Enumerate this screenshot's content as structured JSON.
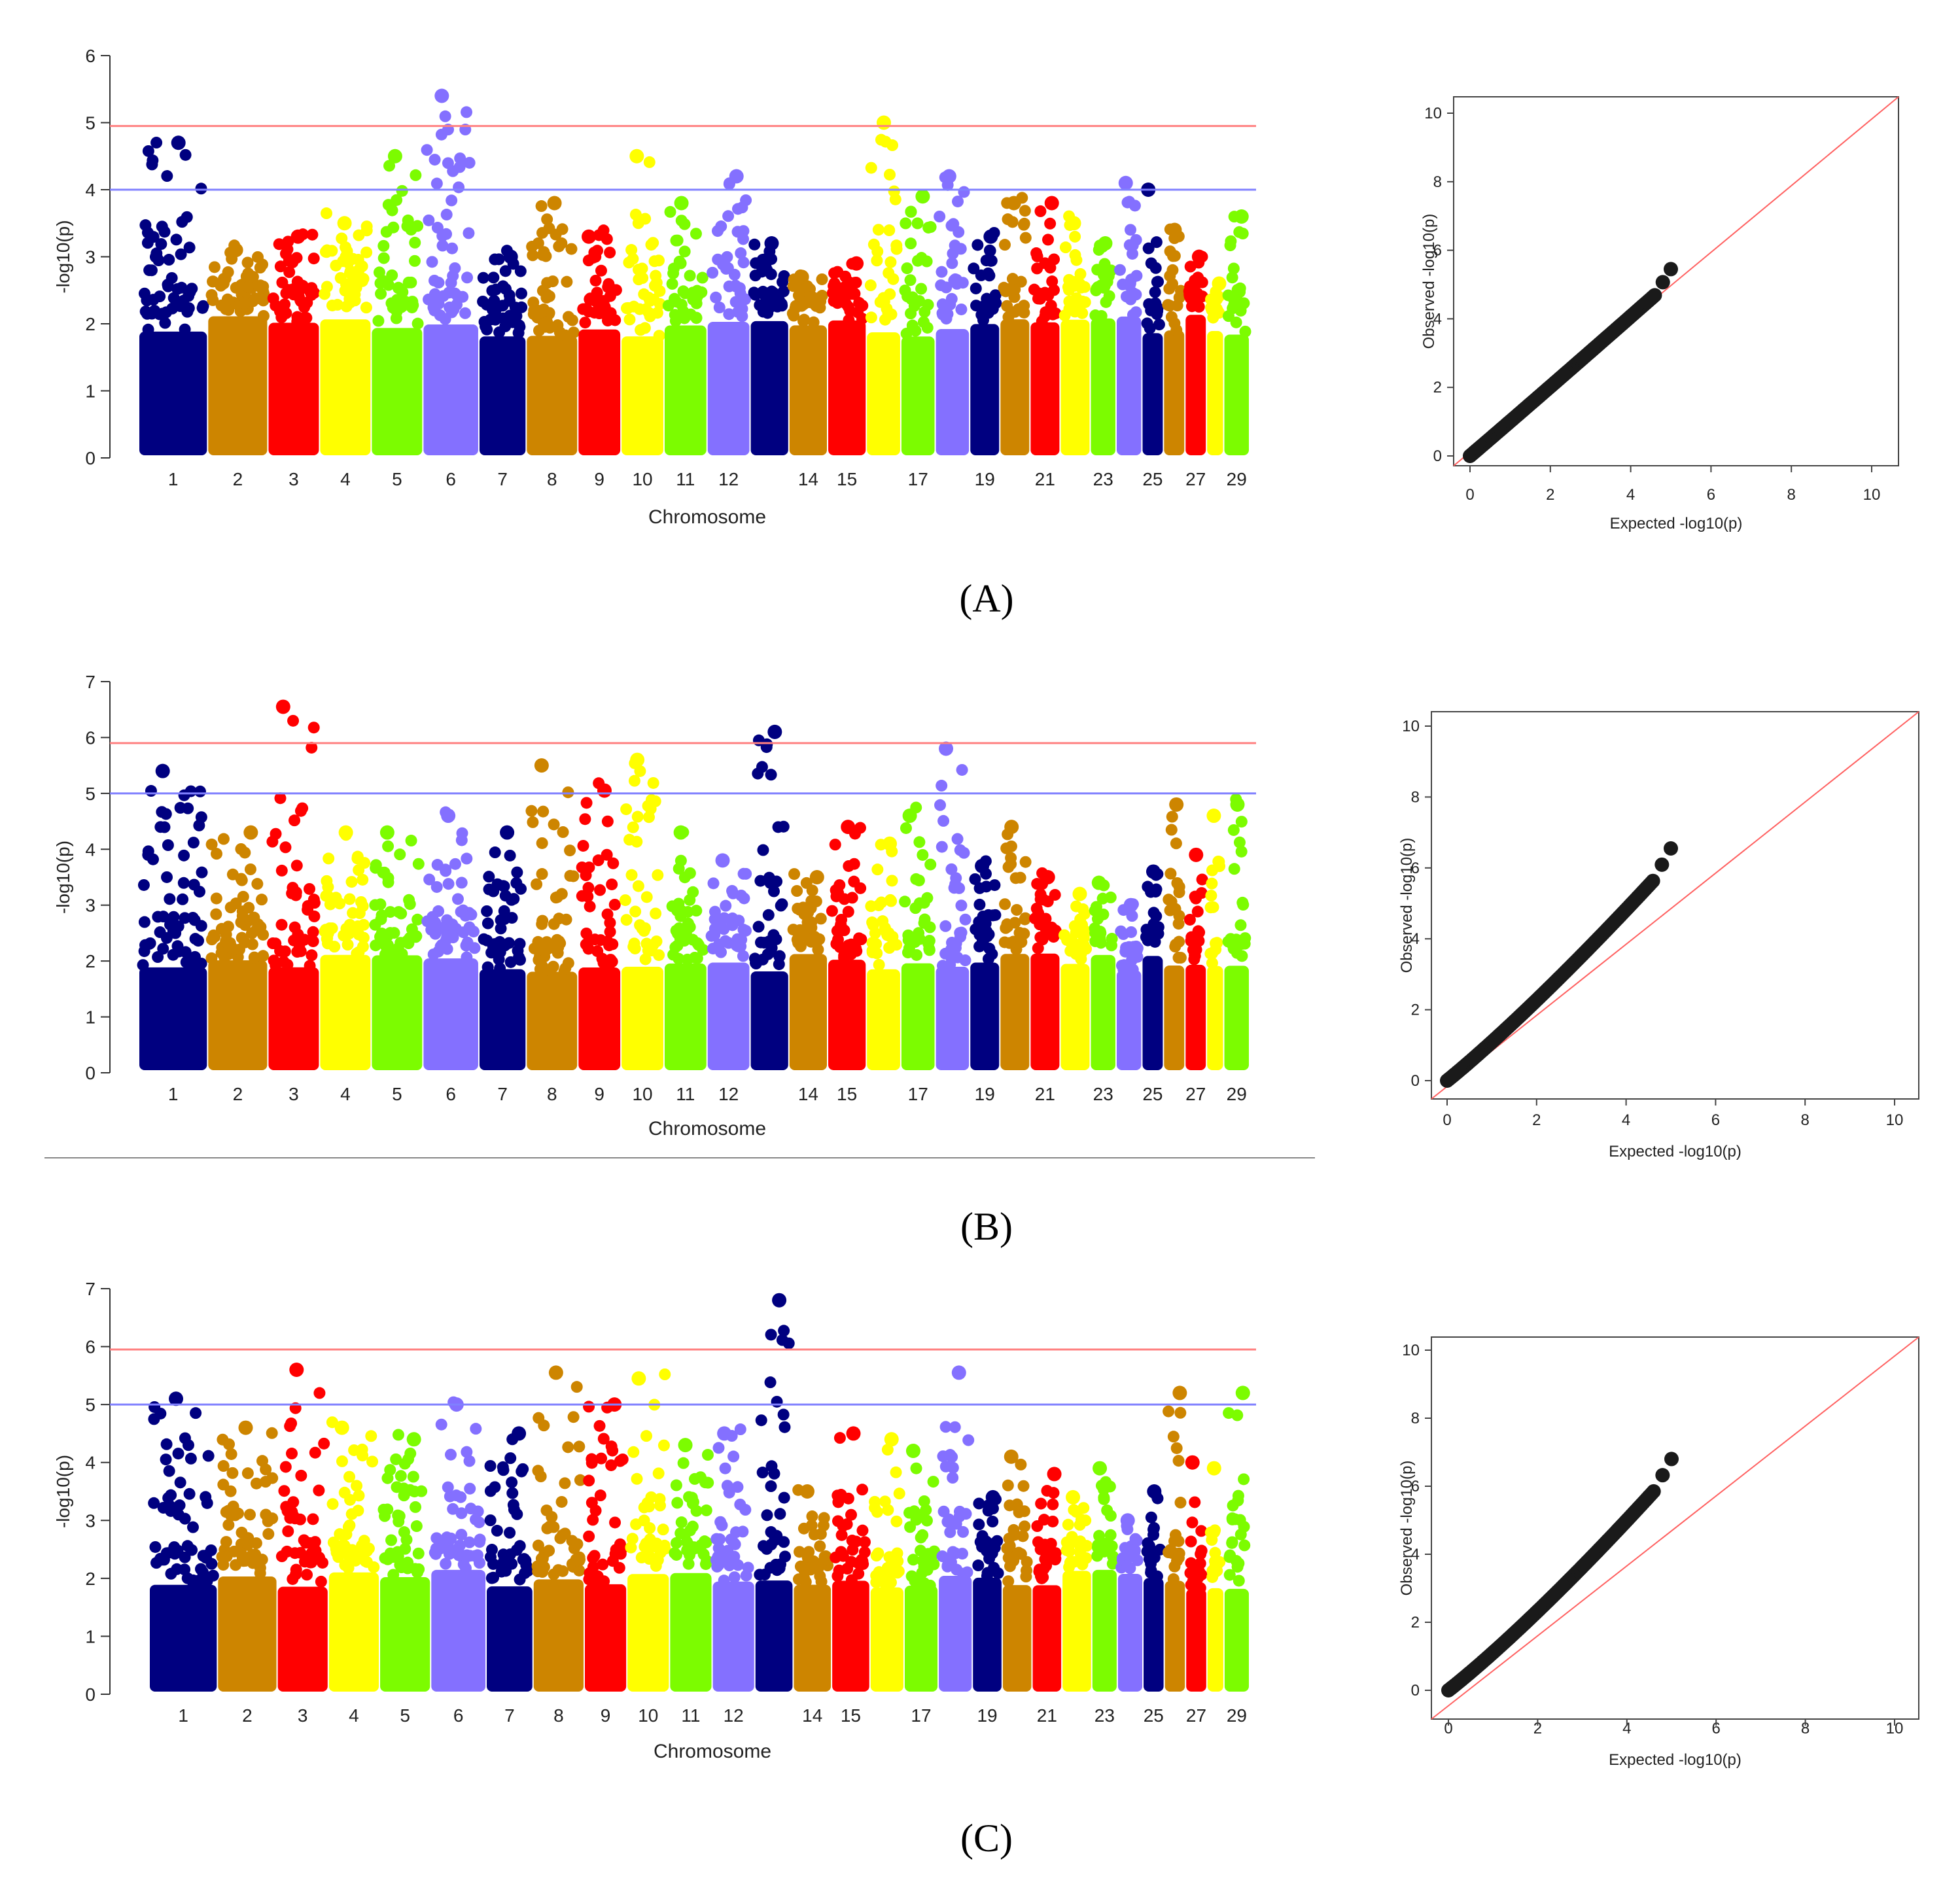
{
  "figure": {
    "panel_labels": [
      "(A)",
      "(B)",
      "(C)"
    ]
  },
  "colors": {
    "chrom_cycle": [
      "#000080",
      "#cd8500",
      "#ff0000",
      "#ffff00",
      "#7cfc00",
      "#8470ff"
    ],
    "significance_line": "#ff8080",
    "suggestive_line": "#8080ff",
    "qq_points": "#1a1a1a",
    "qq_diagonal": "#ff6060"
  },
  "chart_data": [
    {
      "panel": "A",
      "type": "scatter",
      "subtype": "manhattan",
      "xlabel": "Chromosome",
      "ylabel": "-log10(p)",
      "ylim": [
        0,
        6
      ],
      "yticks": [
        "0",
        "1",
        "2",
        "3",
        "4",
        "5",
        "6"
      ],
      "chromosomes": [
        "1",
        "2",
        "3",
        "4",
        "5",
        "6",
        "7",
        "8",
        "9",
        "10",
        "11",
        "12",
        "13",
        "14",
        "15",
        "16",
        "17",
        "18",
        "19",
        "20",
        "21",
        "22",
        "23",
        "24",
        "25",
        "26",
        "27",
        "28",
        "29"
      ],
      "xtick_labels": [
        "1",
        "2",
        "3",
        "4",
        "5",
        "6",
        "7",
        "8",
        "9",
        "10",
        "11",
        "12",
        "",
        "14",
        "15",
        "",
        "17",
        "",
        "19",
        "",
        "21",
        "",
        "23",
        "",
        "25",
        "",
        "27",
        "",
        "29"
      ],
      "chrom_widths": [
        1.6,
        1.4,
        1.2,
        1.2,
        1.2,
        1.3,
        1.1,
        1.2,
        1.0,
        1.0,
        1.0,
        1.0,
        0.9,
        0.9,
        0.9,
        0.8,
        0.8,
        0.8,
        0.7,
        0.7,
        0.7,
        0.7,
        0.6,
        0.6,
        0.5,
        0.5,
        0.5,
        0.4,
        0.6
      ],
      "chrom_peaks": [
        4.7,
        3.1,
        3.3,
        3.5,
        4.5,
        5.4,
        3.0,
        3.8,
        3.3,
        4.5,
        3.8,
        4.2,
        3.2,
        2.7,
        2.9,
        5.0,
        3.9,
        4.2,
        3.3,
        3.8,
        3.8,
        3.5,
        3.2,
        4.1,
        4.0,
        3.4,
        3.0,
        2.6,
        3.6
      ],
      "thresholds": {
        "significance": 4.95,
        "suggestive": 4.0
      }
    },
    {
      "panel": "A",
      "type": "scatter",
      "subtype": "qq",
      "xlabel": "Expected -log10(p)",
      "ylabel": "Observed -log10(p)",
      "xlim": [
        0,
        10
      ],
      "ylim": [
        0,
        10
      ],
      "ticks": [
        "0",
        "2",
        "4",
        "6",
        "8",
        "10"
      ],
      "max_expected": 5.0,
      "max_observed": 5.45
    },
    {
      "panel": "B",
      "type": "scatter",
      "subtype": "manhattan",
      "xlabel": "Chromosome",
      "ylabel": "-log10(p)",
      "ylim": [
        0,
        7
      ],
      "yticks": [
        "0",
        "1",
        "2",
        "3",
        "4",
        "5",
        "6",
        "7"
      ],
      "chromosomes": [
        "1",
        "2",
        "3",
        "4",
        "5",
        "6",
        "7",
        "8",
        "9",
        "10",
        "11",
        "12",
        "13",
        "14",
        "15",
        "16",
        "17",
        "18",
        "19",
        "20",
        "21",
        "22",
        "23",
        "24",
        "25",
        "26",
        "27",
        "28",
        "29"
      ],
      "xtick_labels": [
        "1",
        "2",
        "3",
        "4",
        "5",
        "6",
        "7",
        "8",
        "9",
        "10",
        "11",
        "12",
        "",
        "14",
        "15",
        "",
        "17",
        "",
        "19",
        "",
        "21",
        "",
        "23",
        "",
        "25",
        "",
        "27",
        "",
        "29"
      ],
      "chrom_widths": [
        1.6,
        1.4,
        1.2,
        1.2,
        1.2,
        1.3,
        1.1,
        1.2,
        1.0,
        1.0,
        1.0,
        1.0,
        0.9,
        0.9,
        0.9,
        0.8,
        0.8,
        0.8,
        0.7,
        0.7,
        0.7,
        0.7,
        0.6,
        0.6,
        0.5,
        0.5,
        0.5,
        0.4,
        0.6
      ],
      "chrom_peaks": [
        5.4,
        4.3,
        6.55,
        4.3,
        4.3,
        4.6,
        4.3,
        5.5,
        5.05,
        5.6,
        4.3,
        3.8,
        6.1,
        3.5,
        4.4,
        4.1,
        4.6,
        5.8,
        3.7,
        4.4,
        3.5,
        3.2,
        3.4,
        3.0,
        3.6,
        4.8,
        3.9,
        4.6,
        4.8
      ],
      "thresholds": {
        "significance": 5.9,
        "suggestive": 5.0
      }
    },
    {
      "panel": "B",
      "type": "scatter",
      "subtype": "qq",
      "xlabel": "Expected -log10(p)",
      "ylabel": "Observed -log10(p)",
      "xlim": [
        0,
        10
      ],
      "ylim": [
        0,
        10
      ],
      "ticks": [
        "0",
        "2",
        "4",
        "6",
        "8",
        "10"
      ],
      "max_expected": 5.0,
      "max_observed": 6.55
    },
    {
      "panel": "C",
      "type": "scatter",
      "subtype": "manhattan",
      "xlabel": "Chromosome",
      "ylabel": "-log10(p)",
      "ylim": [
        0,
        7
      ],
      "yticks": [
        "0",
        "1",
        "2",
        "3",
        "4",
        "5",
        "6",
        "7"
      ],
      "chromosomes": [
        "1",
        "2",
        "3",
        "4",
        "5",
        "6",
        "7",
        "8",
        "9",
        "10",
        "11",
        "12",
        "13",
        "14",
        "15",
        "16",
        "17",
        "18",
        "19",
        "20",
        "21",
        "22",
        "23",
        "24",
        "25",
        "26",
        "27",
        "28",
        "29"
      ],
      "xtick_labels": [
        "1",
        "2",
        "3",
        "4",
        "5",
        "6",
        "7",
        "8",
        "9",
        "10",
        "11",
        "12",
        "",
        "14",
        "15",
        "",
        "17",
        "",
        "19",
        "",
        "21",
        "",
        "23",
        "",
        "25",
        "",
        "27",
        "",
        "29"
      ],
      "chrom_widths": [
        1.6,
        1.4,
        1.2,
        1.2,
        1.2,
        1.3,
        1.1,
        1.2,
        1.0,
        1.0,
        1.0,
        1.0,
        0.9,
        0.9,
        0.9,
        0.8,
        0.8,
        0.8,
        0.7,
        0.7,
        0.7,
        0.7,
        0.6,
        0.6,
        0.5,
        0.5,
        0.5,
        0.4,
        0.6
      ],
      "chrom_peaks": [
        5.1,
        4.6,
        5.6,
        4.6,
        4.4,
        5.0,
        4.5,
        5.55,
        5.0,
        5.45,
        4.3,
        4.5,
        6.8,
        3.5,
        4.5,
        4.4,
        4.2,
        5.55,
        3.4,
        4.1,
        3.8,
        3.4,
        3.9,
        3.0,
        3.5,
        5.2,
        4.0,
        3.9,
        5.2
      ],
      "thresholds": {
        "significance": 5.95,
        "suggestive": 5.0
      }
    },
    {
      "panel": "C",
      "type": "scatter",
      "subtype": "qq",
      "xlabel": "Expected -log10(p)",
      "ylabel": "Observed -log10(p)",
      "xlim": [
        0,
        10
      ],
      "ylim": [
        0,
        10
      ],
      "ticks": [
        "0",
        "2",
        "4",
        "6",
        "8",
        "10"
      ],
      "max_expected": 5.0,
      "max_observed": 6.8
    }
  ]
}
